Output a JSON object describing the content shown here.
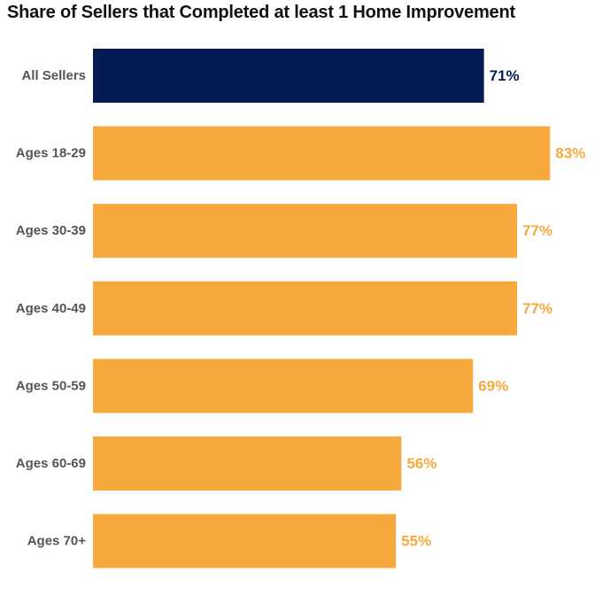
{
  "chart_data": {
    "type": "bar",
    "orientation": "horizontal",
    "title": "Share of Sellers that Completed at least 1 Home Improvement",
    "categories": [
      "All Sellers",
      "Ages 18-29",
      "Ages 30-39",
      "Ages 40-49",
      "Ages 50-59",
      "Ages 60-69",
      "Ages 70+"
    ],
    "values": [
      71,
      83,
      77,
      77,
      69,
      56,
      55
    ],
    "value_labels": [
      "71%",
      "83%",
      "77%",
      "77%",
      "69%",
      "56%",
      "55%"
    ],
    "xlim": [
      0,
      100
    ],
    "grid": false,
    "legend": "none",
    "colors": {
      "highlight": "#051c52",
      "default": "#f7a93d",
      "category_text": "#555555"
    },
    "highlight_categories": [
      "All Sellers"
    ]
  }
}
